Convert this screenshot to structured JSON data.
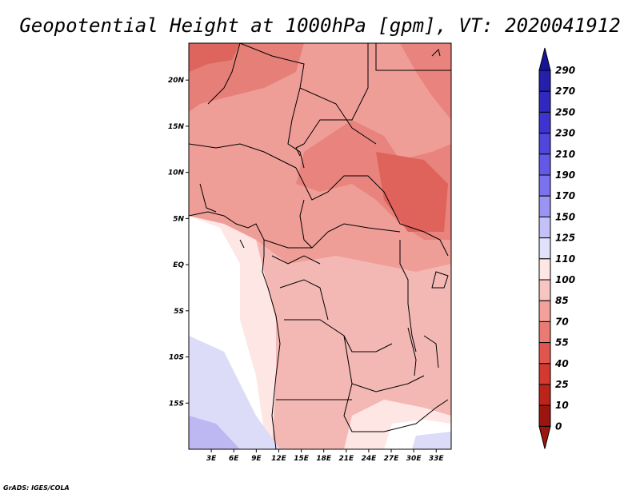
{
  "title": "Geopotential Height at 1000hPa [gpm], VT: 2020041912",
  "credit": "GrADS: IGES/COLA",
  "map": {
    "lon_range": [
      0,
      35
    ],
    "lat_range": [
      -20,
      24
    ],
    "x_ticks": [
      {
        "lon": 3,
        "label": "3E"
      },
      {
        "lon": 6,
        "label": "6E"
      },
      {
        "lon": 9,
        "label": "9E"
      },
      {
        "lon": 12,
        "label": "12E"
      },
      {
        "lon": 15,
        "label": "15E"
      },
      {
        "lon": 18,
        "label": "18E"
      },
      {
        "lon": 21,
        "label": "21E"
      },
      {
        "lon": 24,
        "label": "24E"
      },
      {
        "lon": 27,
        "label": "27E"
      },
      {
        "lon": 30,
        "label": "30E"
      },
      {
        "lon": 33,
        "label": "33E"
      }
    ],
    "y_ticks": [
      {
        "lat": 20,
        "label": "20N"
      },
      {
        "lat": 15,
        "label": "15N"
      },
      {
        "lat": 10,
        "label": "10N"
      },
      {
        "lat": 5,
        "label": "5N"
      },
      {
        "lat": 0,
        "label": "EQ"
      },
      {
        "lat": -5,
        "label": "5S"
      },
      {
        "lat": -10,
        "label": "10S"
      },
      {
        "lat": -15,
        "label": "15S"
      }
    ]
  },
  "colorbar": {
    "levels": [
      "290",
      "270",
      "250",
      "230",
      "210",
      "190",
      "170",
      "150",
      "125",
      "110",
      "100",
      "85",
      "70",
      "55",
      "40",
      "25",
      "10",
      "0"
    ],
    "colors": [
      "#18149a",
      "#241fac",
      "#3028bf",
      "#3c33d0",
      "#4f46dc",
      "#6359e8",
      "#7a72ee",
      "#9a94f3",
      "#c4c1f8",
      "#e2e1fc",
      "#fde6e4",
      "#f8c6c2",
      "#f2a19b",
      "#e97b74",
      "#e0564f",
      "#d3392f",
      "#bc2419",
      "#9c150e"
    ]
  },
  "chart_data": {
    "type": "heatmap",
    "title": "Geopotential Height at 1000hPa [gpm], VT: 2020041912",
    "variable": "Geopotential Height",
    "level": "1000hPa",
    "units": "gpm",
    "valid_time": "2020041912",
    "region": {
      "lon": [
        0,
        35
      ],
      "lat": [
        -20,
        24
      ]
    },
    "contour_levels": [
      0,
      10,
      25,
      40,
      55,
      70,
      85,
      100,
      110,
      125,
      150,
      170,
      190,
      210,
      230,
      250,
      270,
      290
    ],
    "x": [
      1,
      5,
      9,
      13,
      17,
      21,
      25,
      29,
      33
    ],
    "y": [
      22,
      18,
      14,
      10,
      6,
      2,
      -2,
      -6,
      -10,
      -14,
      -18
    ],
    "z": [
      [
        45,
        55,
        60,
        60,
        60,
        62,
        60,
        50,
        45
      ],
      [
        55,
        60,
        62,
        60,
        55,
        65,
        60,
        50,
        45
      ],
      [
        70,
        75,
        72,
        62,
        60,
        62,
        55,
        45,
        40
      ],
      [
        75,
        78,
        72,
        62,
        55,
        50,
        50,
        40,
        35
      ],
      [
        80,
        95,
        80,
        70,
        65,
        62,
        60,
        55,
        40
      ],
      [
        95,
        110,
        85,
        82,
        78,
        72,
        70,
        65,
        55
      ],
      [
        110,
        110,
        95,
        88,
        80,
        72,
        70,
        65,
        60
      ],
      [
        110,
        110,
        100,
        92,
        88,
        82,
        72,
        68,
        65
      ],
      [
        115,
        110,
        105,
        100,
        95,
        88,
        75,
        68,
        68
      ],
      [
        125,
        115,
        108,
        100,
        95,
        98,
        105,
        88,
        78
      ],
      [
        130,
        122,
        112,
        100,
        98,
        100,
        110,
        115,
        125
      ]
    ]
  }
}
